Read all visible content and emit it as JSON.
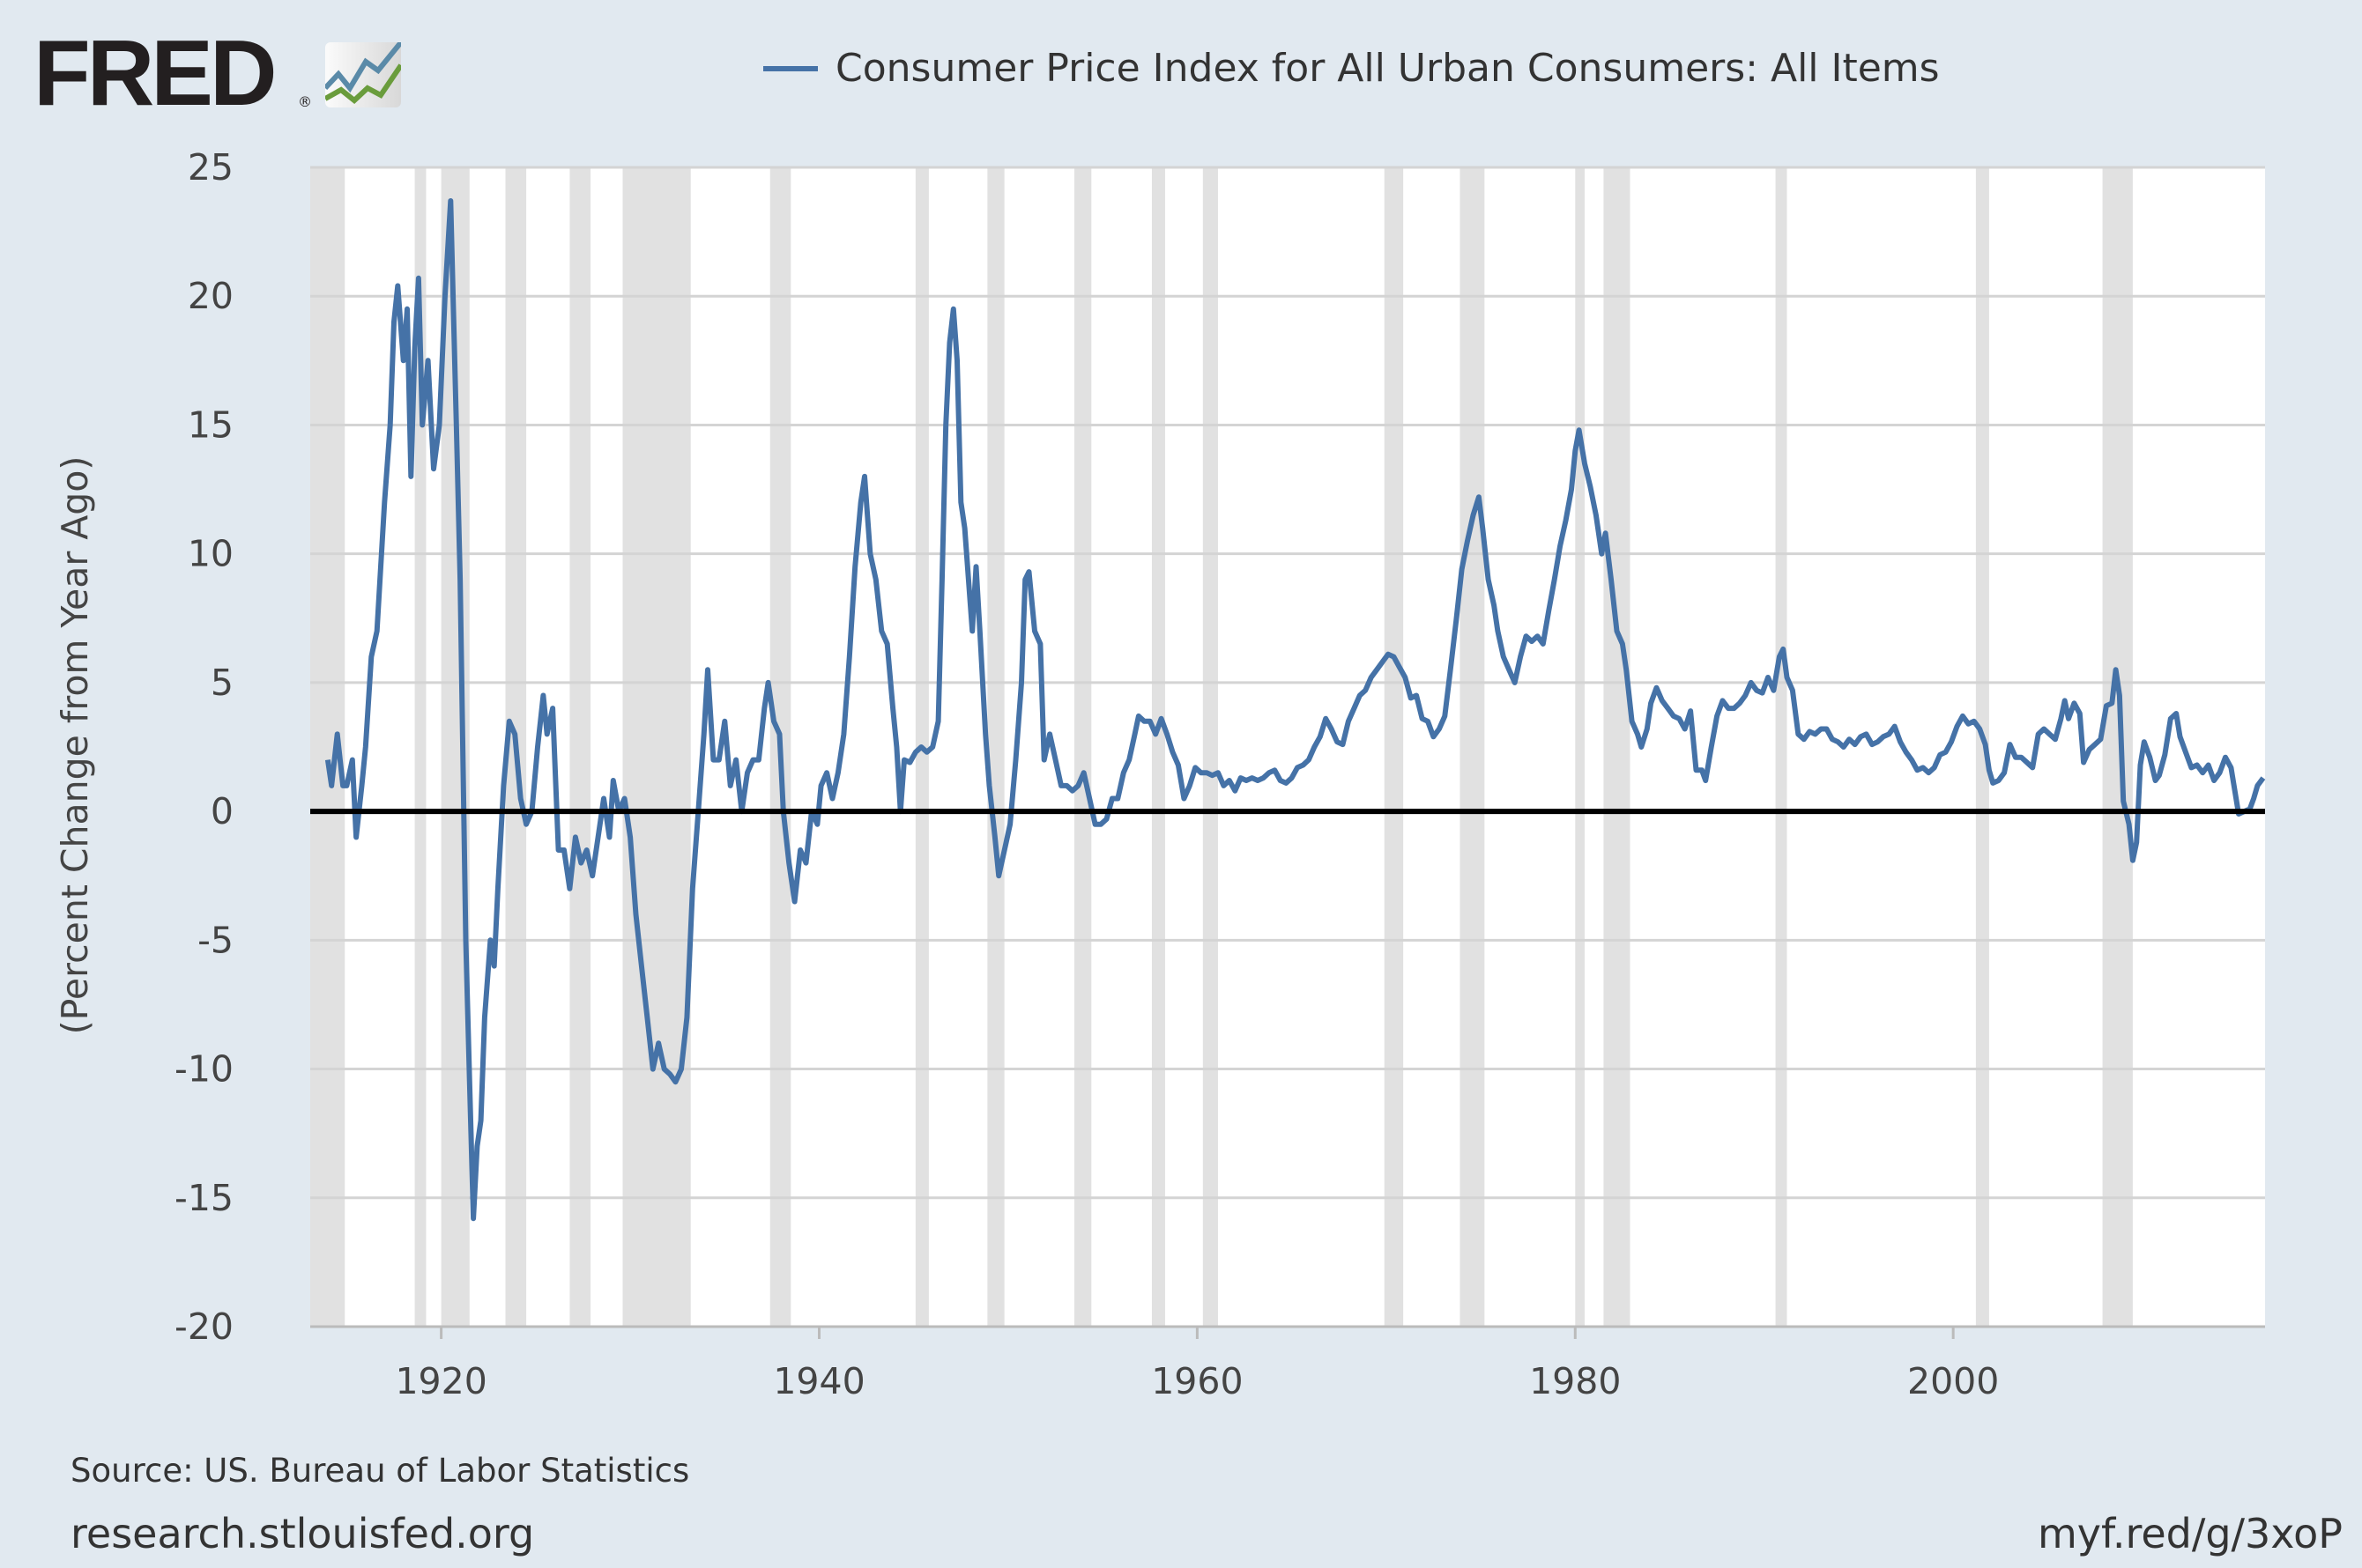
{
  "logo": {
    "text": "FRED"
  },
  "footer": {
    "source": "Source: US. Bureau of Labor Statistics",
    "site": "research.stlouisfed.org",
    "short_link": "myf.red/g/3xoP"
  },
  "colors": {
    "line": "#4572a7",
    "background": "#e1e9f0",
    "recession": "#e1e1e1",
    "grid": "#d4d4d4",
    "zero": "#000000"
  },
  "chart_data": {
    "type": "line",
    "title": "Consumer Price Index for All Urban Consumers: All Items",
    "xlabel": "",
    "ylabel": "(Percent Change from Year Ago)",
    "xlim": [
      1913.07,
      2016.5
    ],
    "ylim": [
      -20,
      25
    ],
    "yticks": [
      25,
      20,
      15,
      10,
      5,
      0,
      -5,
      -10,
      -15,
      -20
    ],
    "xticks": [
      1920,
      1940,
      1960,
      1980,
      2000
    ],
    "grid": true,
    "legend": "top-center",
    "recessions": [
      [
        1913.07,
        1914.9
      ],
      [
        1918.6,
        1919.2
      ],
      [
        1920.0,
        1921.5
      ],
      [
        1923.4,
        1924.5
      ],
      [
        1926.8,
        1927.9
      ],
      [
        1929.6,
        1933.2
      ],
      [
        1937.4,
        1938.5
      ],
      [
        1945.1,
        1945.8
      ],
      [
        1948.9,
        1949.8
      ],
      [
        1953.5,
        1954.4
      ],
      [
        1957.6,
        1958.3
      ],
      [
        1960.3,
        1961.1
      ],
      [
        1969.9,
        1970.9
      ],
      [
        1973.9,
        1975.2
      ],
      [
        1980.0,
        1980.5
      ],
      [
        1981.5,
        1982.9
      ],
      [
        1990.6,
        1991.2
      ],
      [
        2001.2,
        2001.9
      ],
      [
        2007.9,
        2009.5
      ]
    ],
    "series": [
      {
        "name": "Consumer Price Index for All Urban Consumers: All Items",
        "x": [
          1914.0,
          1914.2,
          1914.5,
          1914.8,
          1915.0,
          1915.3,
          1915.5,
          1915.8,
          1916.0,
          1916.3,
          1916.6,
          1917.0,
          1917.3,
          1917.5,
          1917.7,
          1918.0,
          1918.2,
          1918.4,
          1918.6,
          1918.8,
          1919.0,
          1919.3,
          1919.6,
          1919.9,
          1920.2,
          1920.5,
          1920.8,
          1921.0,
          1921.3,
          1921.5,
          1921.7,
          1921.9,
          1922.1,
          1922.3,
          1922.6,
          1922.8,
          1923.0,
          1923.3,
          1923.6,
          1923.9,
          1924.2,
          1924.5,
          1924.8,
          1925.1,
          1925.4,
          1925.6,
          1925.9,
          1926.2,
          1926.5,
          1926.8,
          1927.1,
          1927.4,
          1927.7,
          1928.0,
          1928.3,
          1928.6,
          1928.9,
          1929.1,
          1929.4,
          1929.7,
          1930.0,
          1930.3,
          1930.6,
          1930.9,
          1931.2,
          1931.5,
          1931.8,
          1932.1,
          1932.4,
          1932.7,
          1933.0,
          1933.3,
          1933.6,
          1933.9,
          1934.1,
          1934.4,
          1934.7,
          1935.0,
          1935.3,
          1935.6,
          1935.9,
          1936.2,
          1936.5,
          1936.8,
          1937.1,
          1937.3,
          1937.6,
          1937.9,
          1938.1,
          1938.4,
          1938.7,
          1939.0,
          1939.3,
          1939.6,
          1939.9,
          1940.1,
          1940.4,
          1940.7,
          1941.0,
          1941.3,
          1941.6,
          1941.9,
          1942.2,
          1942.4,
          1942.7,
          1943.0,
          1943.3,
          1943.6,
          1943.9,
          1944.1,
          1944.3,
          1944.5,
          1944.8,
          1945.1,
          1945.4,
          1945.7,
          1946.0,
          1946.3,
          1946.5,
          1946.7,
          1946.9,
          1947.1,
          1947.3,
          1947.5,
          1947.7,
          1947.9,
          1948.1,
          1948.3,
          1948.5,
          1948.8,
          1949.0,
          1949.3,
          1949.5,
          1949.8,
          1950.1,
          1950.4,
          1950.7,
          1950.9,
          1951.1,
          1951.4,
          1951.7,
          1951.9,
          1952.2,
          1952.5,
          1952.8,
          1953.1,
          1953.4,
          1953.7,
          1954.0,
          1954.3,
          1954.6,
          1954.9,
          1955.2,
          1955.5,
          1955.8,
          1956.1,
          1956.4,
          1956.7,
          1956.9,
          1957.2,
          1957.5,
          1957.8,
          1958.1,
          1958.4,
          1958.7,
          1959.0,
          1959.3,
          1959.6,
          1959.9,
          1960.2,
          1960.5,
          1960.8,
          1961.1,
          1961.4,
          1961.7,
          1962.0,
          1962.3,
          1962.6,
          1962.9,
          1963.2,
          1963.5,
          1963.8,
          1964.1,
          1964.4,
          1964.7,
          1965.0,
          1965.3,
          1965.6,
          1965.9,
          1966.2,
          1966.5,
          1966.8,
          1967.1,
          1967.4,
          1967.7,
          1968.0,
          1968.3,
          1968.6,
          1968.9,
          1969.2,
          1969.5,
          1969.8,
          1970.1,
          1970.4,
          1970.7,
          1971.0,
          1971.3,
          1971.6,
          1971.9,
          1972.2,
          1972.5,
          1972.8,
          1973.1,
          1973.4,
          1973.7,
          1974.0,
          1974.3,
          1974.6,
          1974.9,
          1975.1,
          1975.4,
          1975.7,
          1975.9,
          1976.2,
          1976.5,
          1976.8,
          1977.1,
          1977.4,
          1977.7,
          1978.0,
          1978.3,
          1978.6,
          1978.9,
          1979.2,
          1979.5,
          1979.8,
          1980.0,
          1980.2,
          1980.5,
          1980.8,
          1981.1,
          1981.4,
          1981.6,
          1981.9,
          1982.2,
          1982.5,
          1982.7,
          1983.0,
          1983.3,
          1983.5,
          1983.8,
          1984.0,
          1984.3,
          1984.6,
          1984.9,
          1985.2,
          1985.5,
          1985.8,
          1986.1,
          1986.4,
          1986.7,
          1986.9,
          1987.2,
          1987.5,
          1987.8,
          1988.1,
          1988.4,
          1988.7,
          1989.0,
          1989.3,
          1989.6,
          1989.9,
          1990.2,
          1990.5,
          1990.8,
          1991.0,
          1991.2,
          1991.5,
          1991.8,
          1992.1,
          1992.4,
          1992.7,
          1993.0,
          1993.3,
          1993.6,
          1993.9,
          1994.2,
          1994.5,
          1994.8,
          1995.1,
          1995.4,
          1995.7,
          1996.0,
          1996.3,
          1996.6,
          1996.9,
          1997.2,
          1997.5,
          1997.8,
          1998.1,
          1998.4,
          1998.7,
          1999.0,
          1999.3,
          1999.6,
          1999.9,
          2000.2,
          2000.5,
          2000.8,
          2001.1,
          2001.4,
          2001.7,
          2001.9,
          2002.1,
          2002.4,
          2002.7,
          2003.0,
          2003.3,
          2003.6,
          2003.9,
          2004.2,
          2004.5,
          2004.8,
          2005.1,
          2005.4,
          2005.7,
          2005.9,
          2006.1,
          2006.4,
          2006.7,
          2006.9,
          2007.2,
          2007.5,
          2007.8,
          2008.1,
          2008.4,
          2008.6,
          2008.8,
          2009.0,
          2009.3,
          2009.5,
          2009.7,
          2009.9,
          2010.1,
          2010.4,
          2010.7,
          2010.9,
          2011.2,
          2011.5,
          2011.8,
          2012.0,
          2012.3,
          2012.6,
          2012.9,
          2013.2,
          2013.5,
          2013.8,
          2014.1,
          2014.4,
          2014.7,
          2014.9,
          2015.1,
          2015.4,
          2015.7,
          2015.9,
          2016.1,
          2016.4
        ],
        "y": [
          2.0,
          1.0,
          3.0,
          1.0,
          1.0,
          2.0,
          -1.0,
          1.0,
          2.5,
          6.0,
          7.0,
          12,
          15,
          19,
          20.4,
          17.5,
          19.5,
          13,
          18,
          20.7,
          15,
          17.5,
          13.3,
          15,
          20,
          23.7,
          15,
          9,
          -5,
          -10.5,
          -15.8,
          -13,
          -12,
          -8,
          -5,
          -6,
          -3,
          1,
          3.5,
          3.0,
          0.5,
          -0.5,
          0,
          2.5,
          4.5,
          3,
          4,
          -1.5,
          -1.5,
          -3,
          -1,
          -2,
          -1.5,
          -2.5,
          -1,
          0.5,
          -1,
          1.2,
          0,
          0.5,
          -1,
          -4,
          -6,
          -8,
          -10,
          -9,
          -10,
          -10.2,
          -10.5,
          -10,
          -8,
          -3,
          0,
          3,
          5.5,
          2,
          2,
          3.5,
          1,
          2,
          0,
          1.5,
          2,
          2,
          4,
          5,
          3.5,
          3,
          0,
          -2,
          -3.5,
          -1.5,
          -2,
          0,
          -0.5,
          1,
          1.5,
          0.5,
          1.5,
          3,
          6,
          9.5,
          12,
          13,
          10,
          9,
          7,
          6.5,
          4,
          2.5,
          0,
          2,
          1.9,
          2.3,
          2.5,
          2.3,
          2.5,
          3.5,
          9,
          15,
          18.2,
          19.5,
          17.5,
          12,
          11,
          9,
          7,
          9.5,
          7,
          3,
          1,
          -1,
          -2.5,
          -1.5,
          -0.5,
          2,
          5,
          9,
          9.3,
          7,
          6.5,
          2,
          3,
          2,
          1,
          1,
          0.8,
          1,
          1.5,
          0.5,
          -0.5,
          -0.5,
          -0.3,
          0.5,
          0.5,
          1.5,
          2,
          3,
          3.7,
          3.5,
          3.5,
          3,
          3.6,
          3,
          2.3,
          1.8,
          0.5,
          1.0,
          1.7,
          1.5,
          1.5,
          1.4,
          1.5,
          1,
          1.2,
          0.8,
          1.3,
          1.2,
          1.3,
          1.2,
          1.3,
          1.5,
          1.6,
          1.2,
          1.1,
          1.3,
          1.7,
          1.8,
          2,
          2.5,
          2.9,
          3.6,
          3.2,
          2.7,
          2.6,
          3.5,
          4,
          4.5,
          4.7,
          5.2,
          5.5,
          5.8,
          6.1,
          6.0,
          5.6,
          5.2,
          4.4,
          4.5,
          3.6,
          3.5,
          2.9,
          3.2,
          3.7,
          5.5,
          7.4,
          9.4,
          10.5,
          11.5,
          12.2,
          11,
          9,
          8,
          7,
          6,
          5.5,
          5,
          6,
          6.8,
          6.6,
          6.8,
          6.5,
          7.8,
          9,
          10.3,
          11.3,
          12.5,
          14,
          14.8,
          13.5,
          12.6,
          11.5,
          10,
          10.8,
          9,
          7,
          6.5,
          5.5,
          3.5,
          3.0,
          2.5,
          3.2,
          4.2,
          4.8,
          4.3,
          4.0,
          3.7,
          3.6,
          3.2,
          3.9,
          1.6,
          1.6,
          1.2,
          2.5,
          3.7,
          4.3,
          4.0,
          4,
          4.2,
          4.5,
          5.0,
          4.7,
          4.6,
          5.2,
          4.7,
          6.0,
          6.3,
          5.2,
          4.7,
          3.0,
          2.8,
          3.1,
          3.0,
          3.2,
          3.2,
          2.8,
          2.7,
          2.5,
          2.8,
          2.6,
          2.9,
          3.0,
          2.6,
          2.7,
          2.9,
          3.0,
          3.3,
          2.7,
          2.3,
          2.0,
          1.6,
          1.7,
          1.5,
          1.7,
          2.2,
          2.3,
          2.7,
          3.3,
          3.7,
          3.4,
          3.5,
          3.2,
          2.6,
          1.6,
          1.1,
          1.2,
          1.5,
          2.6,
          2.1,
          2.1,
          1.9,
          1.7,
          3.0,
          3.2,
          3.0,
          2.8,
          3.6,
          4.3,
          3.6,
          4.2,
          3.8,
          1.9,
          2.4,
          2.6,
          2.8,
          4.1,
          4.2,
          5.5,
          4.5,
          0.4,
          -0.5,
          -1.9,
          -1.2,
          1.8,
          2.7,
          2.1,
          1.2,
          1.4,
          2.2,
          3.6,
          3.8,
          2.9,
          2.3,
          1.7,
          1.8,
          1.5,
          1.8,
          1.2,
          1.5,
          2.1,
          1.7,
          0.8,
          -0.1,
          0,
          0.1,
          0.5,
          1.0,
          1.3
        ]
      }
    ]
  }
}
